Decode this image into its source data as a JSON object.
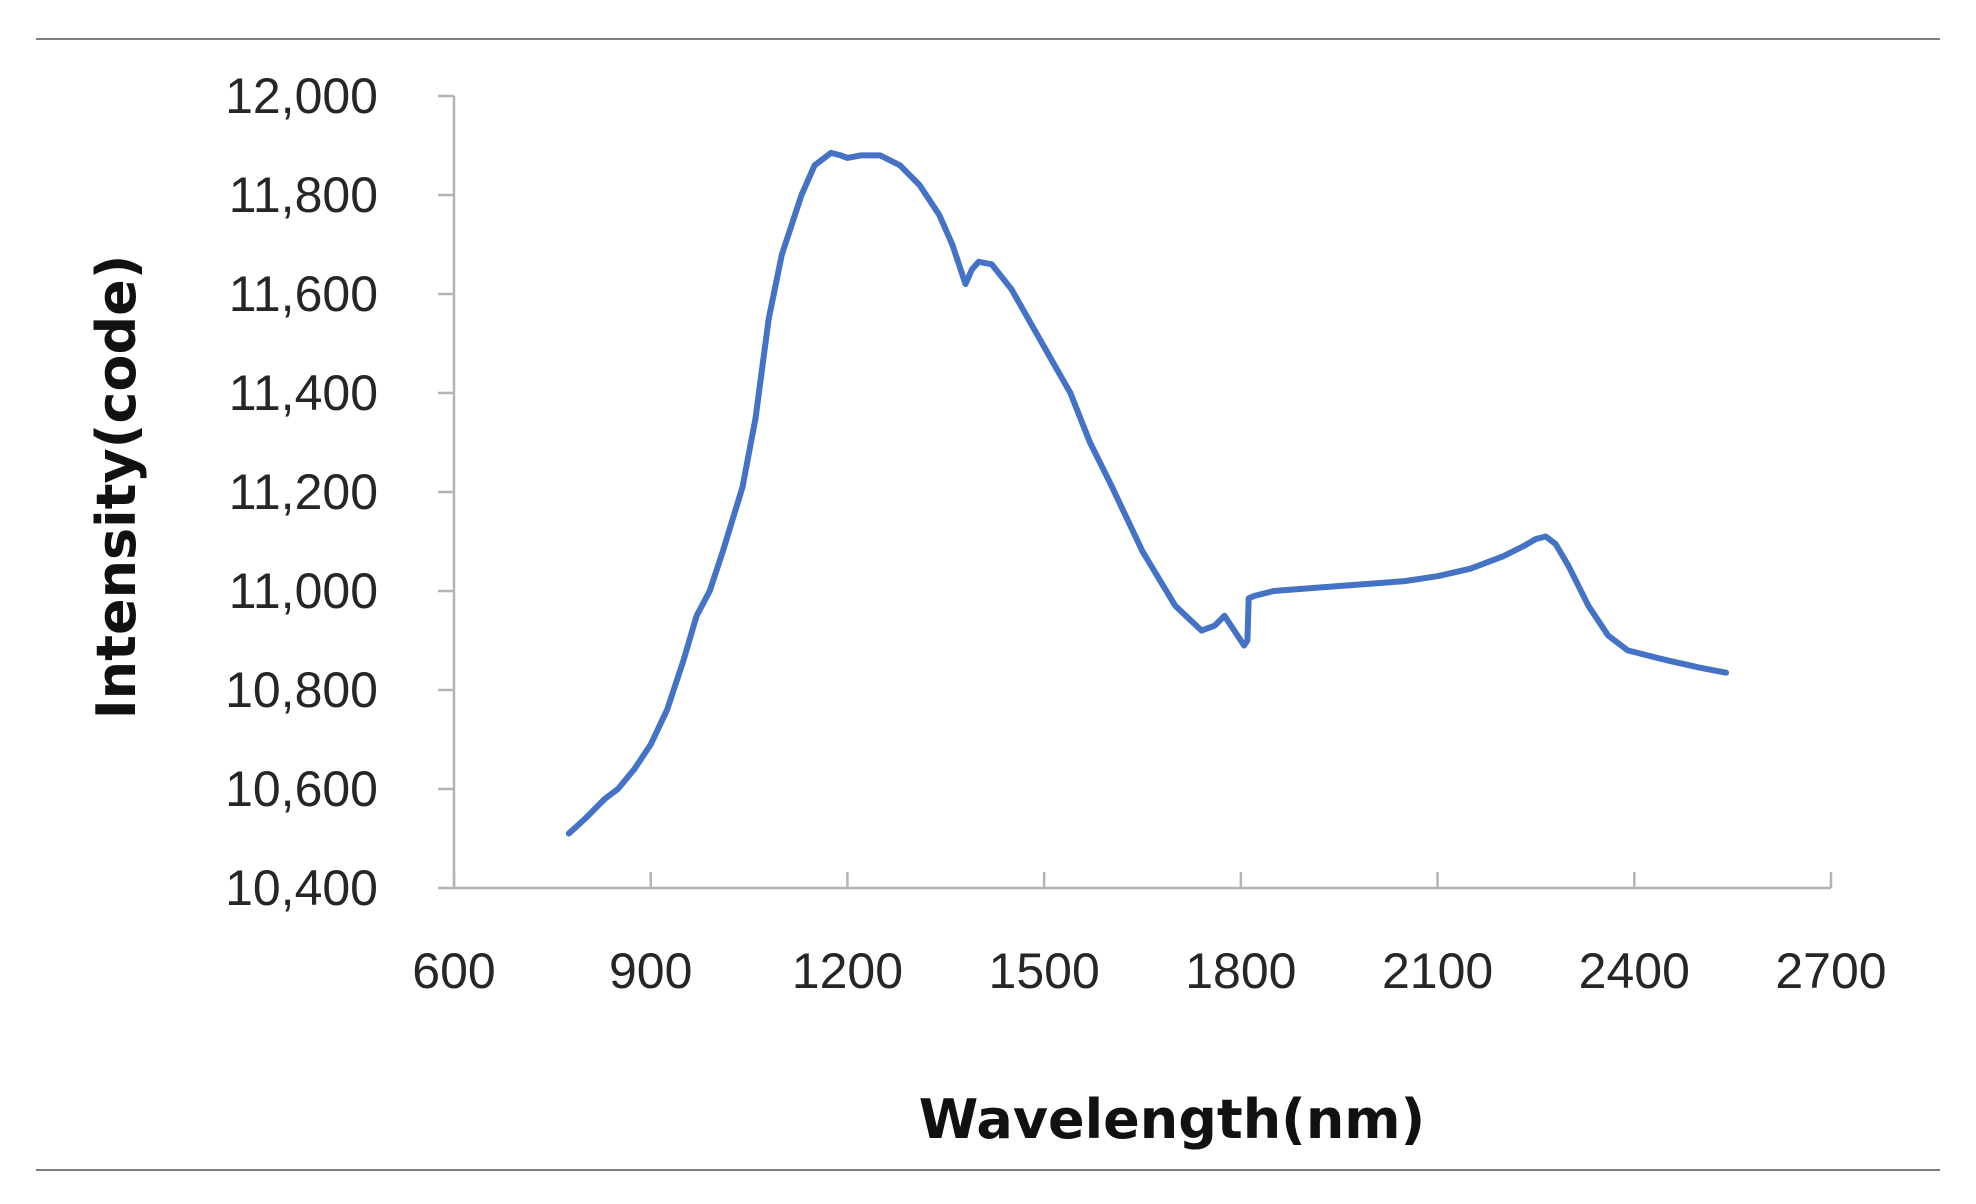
{
  "chart_data": {
    "type": "line",
    "title": "",
    "xlabel": "Wavelength(nm)",
    "ylabel": "Intensity(code)",
    "xlim": [
      600,
      2700
    ],
    "ylim": [
      10400,
      12000
    ],
    "x_ticks": [
      600,
      900,
      1200,
      1500,
      1800,
      2100,
      2400,
      2700
    ],
    "x_tick_labels": [
      "600",
      "900",
      "1200",
      "1500",
      "1800",
      "2100",
      "2400",
      "2700"
    ],
    "y_ticks": [
      10400,
      10600,
      10800,
      11000,
      11200,
      11400,
      11600,
      11800,
      12000
    ],
    "y_tick_labels": [
      "10,400",
      "10,600",
      "10,800",
      "11,000",
      "11,200",
      "11,400",
      "11,600",
      "11,800",
      "12,000"
    ],
    "grid": false,
    "legend": "none",
    "series": [
      {
        "name": "Intensity",
        "color": "#4472c4",
        "x": [
          775,
          800,
          830,
          850,
          875,
          900,
          925,
          950,
          970,
          990,
          1010,
          1040,
          1060,
          1080,
          1100,
          1130,
          1150,
          1175,
          1190,
          1200,
          1220,
          1250,
          1280,
          1310,
          1340,
          1360,
          1375,
          1380,
          1390,
          1400,
          1420,
          1450,
          1480,
          1510,
          1540,
          1570,
          1600,
          1650,
          1700,
          1740,
          1760,
          1775,
          1790,
          1805,
          1810,
          1812,
          1820,
          1850,
          1900,
          1950,
          2000,
          2050,
          2100,
          2150,
          2200,
          2230,
          2250,
          2265,
          2280,
          2300,
          2330,
          2360,
          2390,
          2420,
          2450,
          2500,
          2540
        ],
        "values": [
          10510,
          10540,
          10580,
          10600,
          10640,
          10690,
          10760,
          10860,
          10950,
          11000,
          11080,
          11210,
          11350,
          11550,
          11680,
          11800,
          11860,
          11885,
          11880,
          11875,
          11880,
          11880,
          11860,
          11820,
          11760,
          11700,
          11640,
          11620,
          11650,
          11665,
          11660,
          11610,
          11540,
          11470,
          11400,
          11300,
          11220,
          11080,
          10970,
          10920,
          10930,
          10950,
          10920,
          10890,
          10900,
          10985,
          10990,
          11000,
          11005,
          11010,
          11015,
          11020,
          11030,
          11045,
          11070,
          11090,
          11105,
          11110,
          11095,
          11050,
          10970,
          10910,
          10880,
          10870,
          10860,
          10845,
          10835
        ]
      }
    ]
  }
}
